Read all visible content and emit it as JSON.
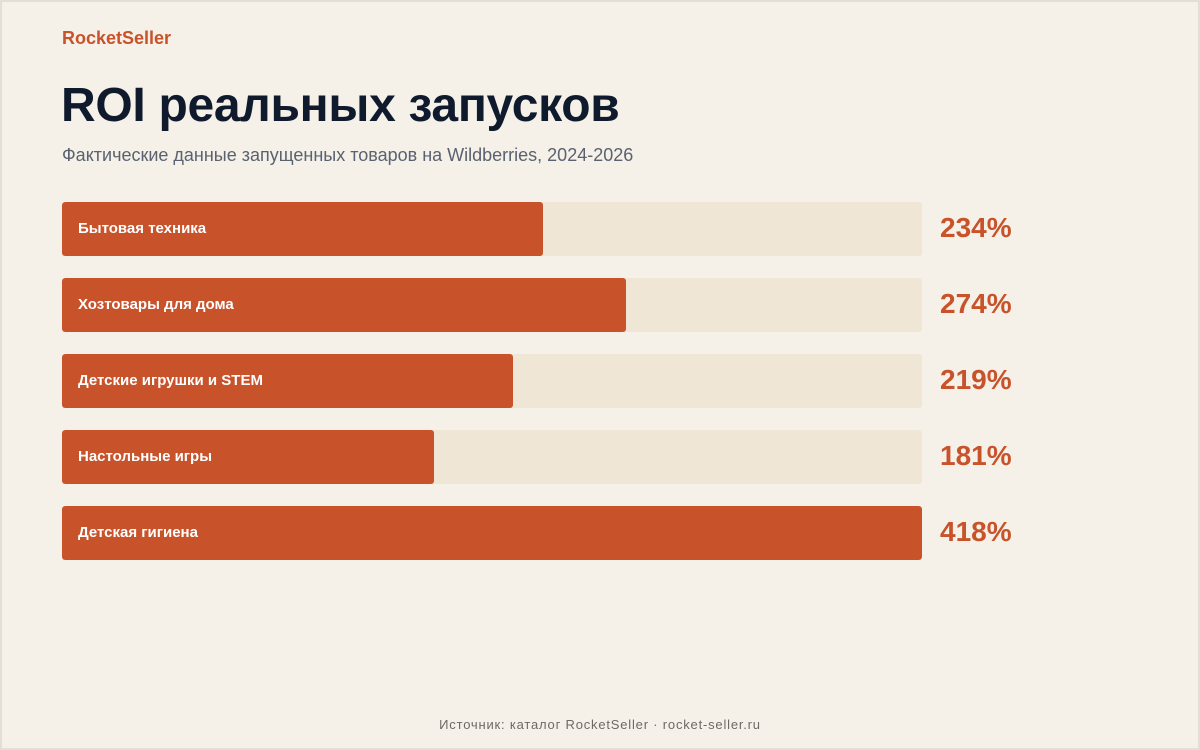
{
  "brand": "RocketSeller",
  "title": "ROI реальных запусков",
  "subtitle": "Фактические данные запущенных товаров на Wildberries, 2024-2026",
  "footer": "Источник: каталог RocketSeller · rocket-seller.ru",
  "colors": {
    "accent": "#c8522a",
    "track": "#efe6d6",
    "background": "#f5f0e8",
    "title": "#0f1b2d"
  },
  "chart_data": {
    "type": "bar",
    "orientation": "horizontal",
    "categories": [
      "Бытовая техника",
      "Хозтовары для дома",
      "Детские игрушки и STEM",
      "Настольные игры",
      "Детская гигиена"
    ],
    "values": [
      234,
      274,
      219,
      181,
      418
    ],
    "value_labels": [
      "234%",
      "274%",
      "219%",
      "181%",
      "418%"
    ],
    "unit": "%",
    "xlim": [
      0,
      418
    ],
    "title": "ROI реальных запусков",
    "subtitle": "Фактические данные запущенных товаров на Wildberries, 2024-2026",
    "grid": false,
    "legend": "none"
  }
}
